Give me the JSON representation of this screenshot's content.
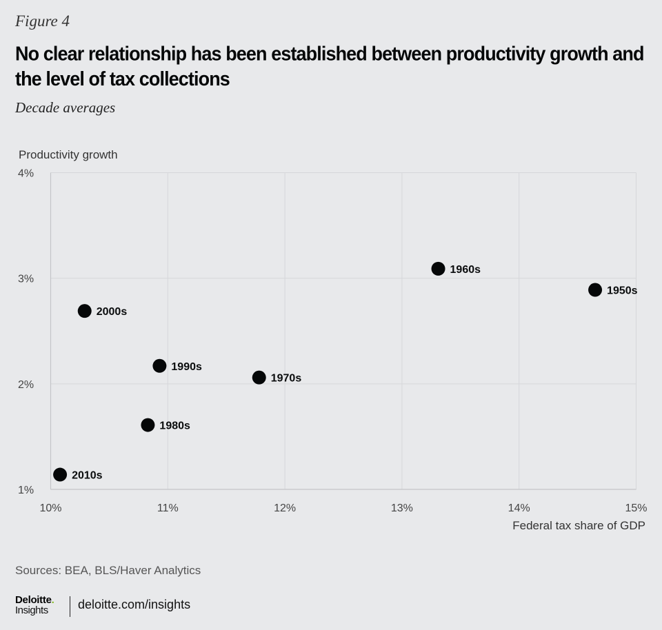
{
  "header": {
    "figure_label": "Figure 4",
    "title": "No clear relationship has been established between productivity growth and the level of tax collections",
    "subtitle": "Decade averages"
  },
  "chart_data": {
    "type": "scatter",
    "title": "No clear relationship has been established between productivity growth and the level of tax collections",
    "subtitle": "Decade averages",
    "xlabel": "Federal tax share of GDP",
    "ylabel": "Productivity growth",
    "xlim": [
      10,
      15
    ],
    "ylim": [
      1,
      4
    ],
    "x_ticks": [
      10,
      11,
      12,
      13,
      14,
      15
    ],
    "y_ticks": [
      1,
      2,
      3,
      4
    ],
    "x_tick_labels": [
      "10%",
      "11%",
      "12%",
      "13%",
      "14%",
      "15%"
    ],
    "y_tick_labels": [
      "1%",
      "2%",
      "3%",
      "4%"
    ],
    "grid": true,
    "legend": "none",
    "marker_color": "#050708",
    "points": [
      {
        "label": "1950s",
        "x": 14.65,
        "y": 2.89
      },
      {
        "label": "1960s",
        "x": 13.31,
        "y": 3.09
      },
      {
        "label": "1970s",
        "x": 11.78,
        "y": 2.06
      },
      {
        "label": "1980s",
        "x": 10.83,
        "y": 1.61
      },
      {
        "label": "1990s",
        "x": 10.93,
        "y": 2.17
      },
      {
        "label": "2000s",
        "x": 10.29,
        "y": 2.69
      },
      {
        "label": "2010s",
        "x": 10.08,
        "y": 1.14
      }
    ]
  },
  "footer": {
    "sources": "Sources: BEA, BLS/Haver Analytics",
    "logo_brand": "Deloitte",
    "logo_dot": ".",
    "logo_sub": "Insights",
    "site": "deloitte.com/insights",
    "accent_color": "#86bc25"
  }
}
